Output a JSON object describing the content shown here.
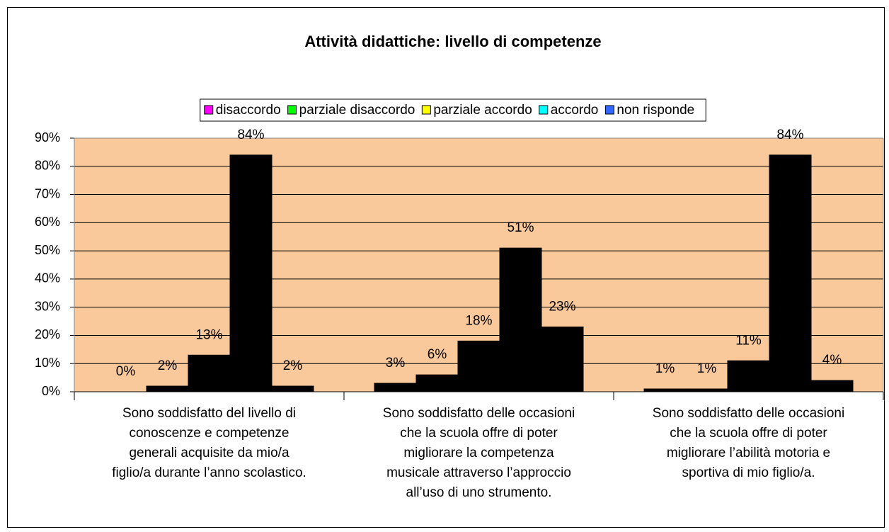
{
  "chart_data": {
    "type": "bar",
    "title": "Attività didattiche: livello di competenze",
    "categories": [
      [
        "Sono soddisfatto del livello di",
        "conoscenze  e competenze",
        "generali acquisite da mio/a",
        "figlio/a durante l’anno scolastico."
      ],
      [
        "Sono soddisfatto delle occasioni",
        "che la scuola offre di poter",
        "migliorare la competenza",
        "musicale attraverso l’approccio",
        "all’uso di uno strumento."
      ],
      [
        "Sono soddisfatto delle occasioni",
        "che la scuola offre di poter",
        "migliorare l’abilità motoria e",
        "sportiva di mio figlio/a."
      ]
    ],
    "series": [
      {
        "name": "disaccordo",
        "color": "#ff00ff",
        "values": [
          0,
          3,
          1
        ],
        "value_labels": [
          "0%",
          "3%",
          "1%"
        ]
      },
      {
        "name": "parziale disaccordo",
        "color": "#00ff00",
        "values": [
          2,
          6,
          1
        ],
        "value_labels": [
          "2%",
          "6%",
          "1%"
        ]
      },
      {
        "name": "parziale accordo",
        "color": "#ffff00",
        "values": [
          13,
          18,
          11
        ],
        "value_labels": [
          "13%",
          "18%",
          "11%"
        ]
      },
      {
        "name": "accordo",
        "color": "#00ffff",
        "values": [
          84,
          51,
          84
        ],
        "value_labels": [
          "84%",
          "51%",
          "84%"
        ]
      },
      {
        "name": "non risponde",
        "color": "#3366ff",
        "values": [
          2,
          23,
          4
        ],
        "value_labels": [
          "2%",
          "23%",
          "4%"
        ]
      }
    ],
    "ylim": [
      0,
      90
    ],
    "yticks": [
      {
        "value": 0,
        "label": "0%"
      },
      {
        "value": 10,
        "label": "10%"
      },
      {
        "value": 20,
        "label": "20%"
      },
      {
        "value": 30,
        "label": "30%"
      },
      {
        "value": 40,
        "label": "40%"
      },
      {
        "value": 50,
        "label": "50%"
      },
      {
        "value": 60,
        "label": "60%"
      },
      {
        "value": 70,
        "label": "70%"
      },
      {
        "value": 80,
        "label": "80%"
      },
      {
        "value": 90,
        "label": "90%"
      }
    ],
    "grid": true,
    "legend": "top",
    "plot_background": "#fac99b"
  }
}
